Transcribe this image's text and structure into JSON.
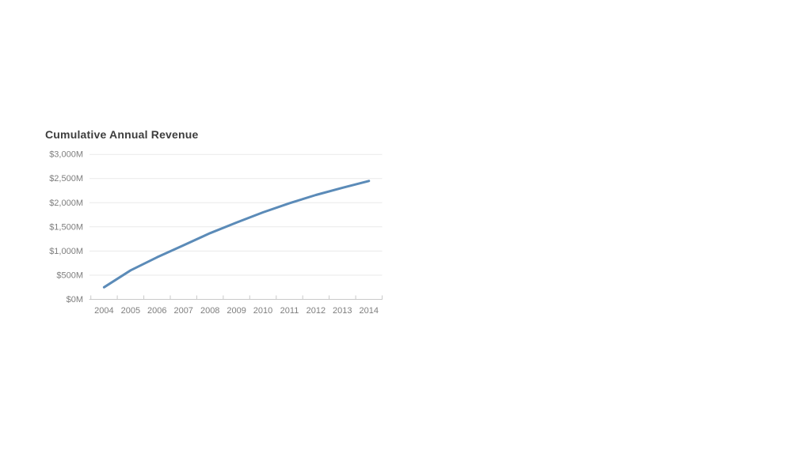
{
  "page": {
    "background": "#ffffff"
  },
  "chart_data": {
    "type": "line",
    "title": "Cumulative Annual Revenue",
    "categories": [
      "2004",
      "2005",
      "2006",
      "2007",
      "2008",
      "2009",
      "2010",
      "2011",
      "2012",
      "2013",
      "2014"
    ],
    "series": [
      {
        "name": "Cumulative Annual Revenue",
        "values": [
          250,
          600,
          870,
          1120,
          1370,
          1590,
          1800,
          1990,
          2160,
          2310,
          2450
        ]
      }
    ],
    "xlabel": "",
    "ylabel": "",
    "ylim": [
      0,
      3000
    ],
    "y_ticks": [
      {
        "value": 0,
        "label": "$0M"
      },
      {
        "value": 500,
        "label": "$500M"
      },
      {
        "value": 1000,
        "label": "$1,000M"
      },
      {
        "value": 1500,
        "label": "$1,500M"
      },
      {
        "value": 2000,
        "label": "$2,000M"
      },
      {
        "value": 2500,
        "label": "$2,500M"
      },
      {
        "value": 3000,
        "label": "$3,000M"
      }
    ],
    "grid": "horizontal",
    "legend_position": "none",
    "colors": {
      "line": "#5b8bb8",
      "grid": "#e9e9e9",
      "axis": "#c9c9c9",
      "tick_label": "#7e7e7e",
      "title": "#3d3d3d"
    }
  }
}
